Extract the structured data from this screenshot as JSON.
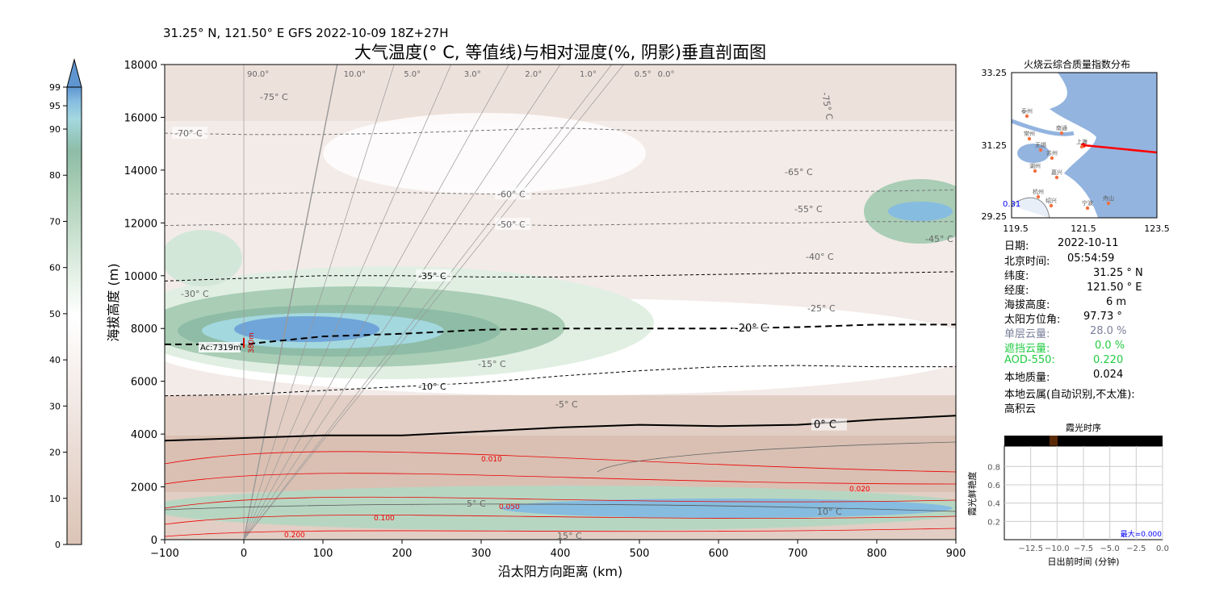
{
  "header": {
    "subtitle": "31.25° N, 121.50° E GFS 2022-10-09 18Z+27H",
    "title": "大气温度(° C, 等值线)与相对湿度(%, 阴影)垂直剖面图"
  },
  "chart_data": [
    {
      "type": "contour",
      "title": "大气温度(° C, 等值线)与相对湿度(%, 阴影)垂直剖面图",
      "xlabel": "沿太阳方向距离 (km)",
      "ylabel": "海拔高度 (m)",
      "xlim": [
        -100,
        900
      ],
      "ylim": [
        0,
        18000
      ],
      "xticks": [
        -100,
        0,
        100,
        200,
        300,
        400,
        500,
        600,
        700,
        800,
        900
      ],
      "yticks": [
        0,
        2000,
        4000,
        6000,
        8000,
        10000,
        12000,
        14000,
        16000,
        18000
      ],
      "x": [
        -100,
        0,
        100,
        200,
        300,
        400,
        500,
        600,
        700,
        800,
        900
      ],
      "isotherms": [
        {
          "label": "0° C",
          "level": 0,
          "heights": [
            3750,
            3850,
            3950,
            3950,
            4100,
            4250,
            4350,
            4300,
            4350,
            4550,
            4700
          ]
        },
        {
          "label": "-10° C",
          "level": -10,
          "heights": [
            5450,
            5500,
            5650,
            5800,
            5950,
            6200,
            6400,
            6550,
            6600,
            6550,
            6550
          ]
        },
        {
          "label": "-20° C",
          "level": -20,
          "heights": [
            7400,
            7400,
            7700,
            7800,
            7950,
            8000,
            8000,
            8000,
            8050,
            8150,
            8150
          ]
        },
        {
          "label": "-35° C",
          "level": -35,
          "heights": [
            9800,
            9900,
            10000,
            10000,
            9950,
            9950,
            10000,
            10050,
            10100,
            10100,
            10150
          ]
        },
        {
          "label": "-50° C",
          "level": -50,
          "heights": [
            11900,
            11950,
            11950,
            12000,
            11950,
            11900,
            11950,
            12000,
            12000,
            12050,
            12050
          ]
        },
        {
          "label": "-60° C",
          "level": -60,
          "heights": [
            13100,
            13100,
            13150,
            13150,
            13100,
            13100,
            13150,
            13200,
            13200,
            13200,
            13250
          ]
        },
        {
          "label": "-70° C",
          "level": -70,
          "heights": [
            15400,
            15350,
            15350,
            15400,
            15500,
            15600,
            15500,
            15450,
            15500,
            15500,
            15500
          ]
        }
      ],
      "rh_colorbar": {
        "ticks": [
          0,
          10,
          20,
          30,
          40,
          50,
          60,
          70,
          80,
          90,
          95,
          99
        ]
      },
      "solar_rays": {
        "labels": [
          "90.0°",
          "10.0°",
          "5.0°",
          "3.0°",
          "2.0°",
          "1.0°",
          "0.5°",
          "0.0°"
        ],
        "top_km": [
          0,
          118,
          190,
          262,
          335,
          400,
          465,
          480
        ]
      },
      "cloud_base": {
        "label": "Ac:7319m",
        "height_m": 7319,
        "thickness_label": "380m"
      },
      "mixing_ratio_labels": [
        "0.010",
        "0.020",
        "0.050",
        "0.100",
        "0.200"
      ],
      "other_labels": [
        "-75° C",
        "-65° C",
        "-55° C",
        "-45° C",
        "-40° C",
        "-30° C",
        "-25° C",
        "-15° C",
        "-5° C",
        "5° C",
        "10° C",
        "15° C",
        "-75° C"
      ]
    },
    {
      "type": "line",
      "title": "霞光时序",
      "xlabel": "日出前时间 (分钟)",
      "ylabel": "霞光鲜艳度",
      "xticks": [
        "-12.5",
        "-10.0",
        "-7.5",
        "-5.0",
        "-2.5",
        "0.0"
      ],
      "yticks": [
        "0.2",
        "0.4",
        "0.6",
        "0.8"
      ],
      "xlim": [
        -15,
        0
      ],
      "ylim": [
        0,
        1
      ],
      "annotation": "最大=0.000"
    }
  ],
  "map": {
    "title": "火烧云综合质量指数分布",
    "yticks": [
      "33.25",
      "31.25",
      "29.25"
    ],
    "xticks": [
      "119.5",
      "121.5",
      "123.5"
    ],
    "value_label": "0.31",
    "cities": [
      "泰州",
      "南通",
      "常州",
      "无锡",
      "苏州",
      "上海",
      "湖州",
      "嘉兴",
      "杭州",
      "绍兴",
      "宁波",
      "舟山"
    ]
  },
  "info": {
    "date_label": "日期:",
    "date": "2022-10-11",
    "time_label": "北京时间:",
    "time": "05:54:59",
    "lat_label": "纬度:",
    "lat": "31.25 ° N",
    "lon_label": "经度:",
    "lon": "121.50 ° E",
    "alt_label": "海拔高度:",
    "alt": "6 m",
    "azi_label": "太阳方位角:",
    "azi": "97.73 °",
    "cloud_label": "单层云量:",
    "cloud": "28.0 %",
    "block_label": "遮挡云量:",
    "block": "0.0 %",
    "aod_label": "AOD-550:",
    "aod": "0.220",
    "quality_label": "本地质量:",
    "quality": "0.024",
    "genus_label": "本地云属(自动识别,不太准):",
    "genus": "高积云"
  },
  "colors": {
    "gray_text": "#7a7f99",
    "green_text": "#22cc44",
    "ray": "#888888",
    "red": "#ee0000"
  }
}
